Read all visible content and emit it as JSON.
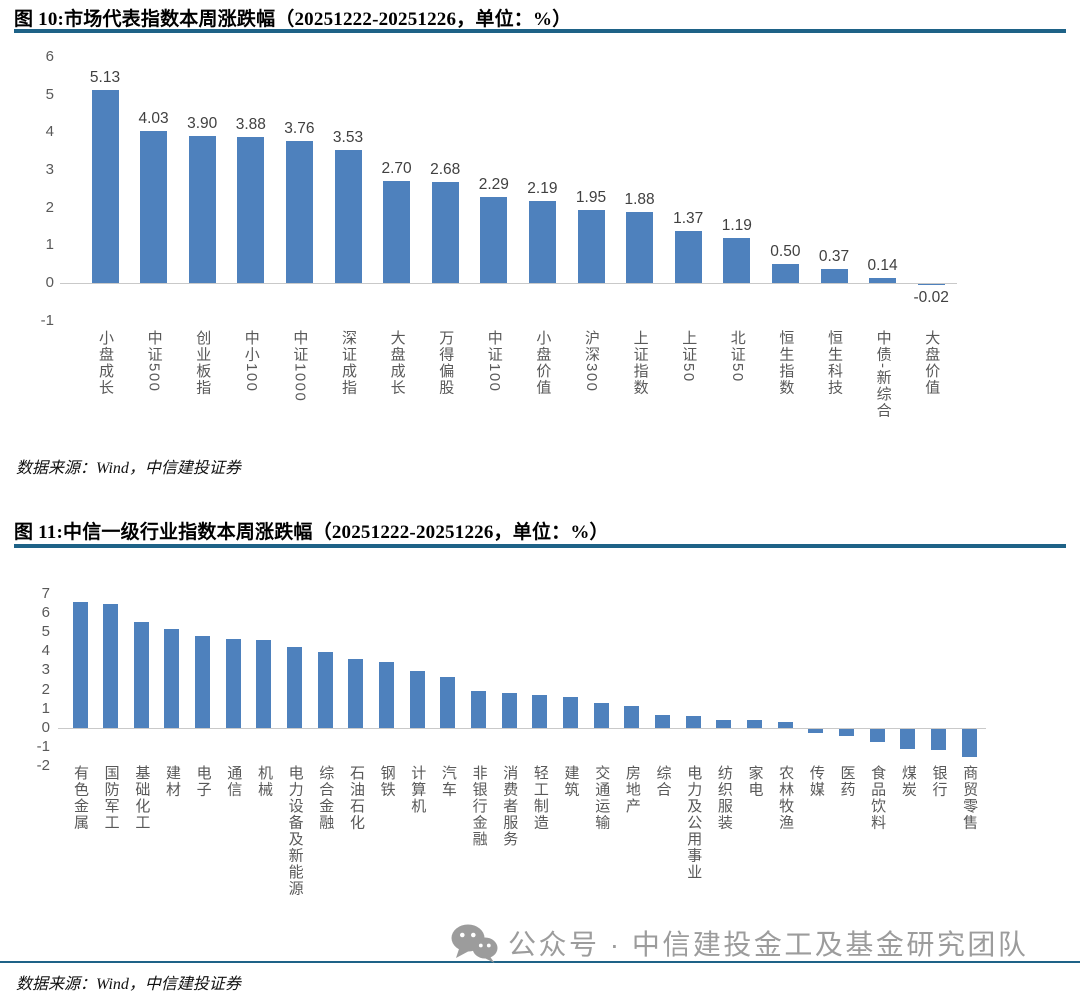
{
  "figure10": {
    "title": "图 10:市场代表指数本周涨跌幅（20251222-20251226，单位：%）",
    "source": "数据来源：Wind，中信建投证券"
  },
  "figure11": {
    "title": "图 11:中信一级行业指数本周涨跌幅（20251222-20251226，单位：%）",
    "source": "数据来源：Wind，中信建投证券"
  },
  "watermark": {
    "icon": "wechat-icon",
    "text": "公众号 · 中信建投金工及基金研究团队"
  },
  "colors": {
    "bar": "#4E81BD",
    "title_rule": "#1E6287",
    "bottom_rule": "#1E6287",
    "axis_line": "#C9C9C9",
    "tick_text": "#595959",
    "value_label": "#404040",
    "watermark": "#9C9C9C"
  },
  "chart_data": [
    {
      "type": "bar",
      "title": "图 10:市场代表指数本周涨跌幅（20251222-20251226，单位：%）",
      "categories": [
        "小盘成长",
        "中证500",
        "创业板指",
        "中小100",
        "中证1000",
        "深证成指",
        "大盘成长",
        "万得偏股",
        "中证100",
        "小盘价值",
        "沪深300",
        "上证指数",
        "上证50",
        "北证50",
        "恒生指数",
        "恒生科技",
        "中债-新综合",
        "大盘价值"
      ],
      "values": [
        5.13,
        4.03,
        3.9,
        3.88,
        3.76,
        3.53,
        2.7,
        2.68,
        2.29,
        2.19,
        1.95,
        1.88,
        1.37,
        1.19,
        0.5,
        0.37,
        0.14,
        -0.02
      ],
      "data_labels": true,
      "label_decimals": 2,
      "xlabel": "",
      "ylabel": "",
      "ylim": [
        -1,
        6
      ],
      "yticks": [
        6,
        5,
        4,
        3,
        2,
        1,
        0,
        -1
      ],
      "grid": false,
      "legend": "none",
      "bar_color": "#4E81BD"
    },
    {
      "type": "bar",
      "title": "图 11:中信一级行业指数本周涨跌幅（20251222-20251226，单位：%）",
      "categories": [
        "有色金属",
        "国防军工",
        "基础化工",
        "建材",
        "电子",
        "通信",
        "机械",
        "电力设备及新能源",
        "综合金融",
        "石油石化",
        "钢铁",
        "计算机",
        "汽车",
        "非银行金融",
        "消费者服务",
        "轻工制造",
        "建筑",
        "交通运输",
        "房地产",
        "综合",
        "电力及公用事业",
        "纺织服装",
        "家电",
        "农林牧渔",
        "传媒",
        "医药",
        "食品饮料",
        "煤炭",
        "银行",
        "商贸零售"
      ],
      "values": [
        6.55,
        6.45,
        5.5,
        5.15,
        4.8,
        4.65,
        4.6,
        4.2,
        3.95,
        3.6,
        3.45,
        2.95,
        2.65,
        1.95,
        1.8,
        1.7,
        1.6,
        1.3,
        1.15,
        0.7,
        0.65,
        0.42,
        0.4,
        0.3,
        -0.2,
        -0.35,
        -0.7,
        -1.05,
        -1.1,
        -1.45
      ],
      "data_labels": false,
      "xlabel": "",
      "ylabel": "",
      "ylim": [
        -2,
        7
      ],
      "yticks": [
        7,
        6,
        5,
        4,
        3,
        2,
        1,
        0,
        -1,
        -2
      ],
      "grid": false,
      "legend": "none",
      "bar_color": "#4E81BD"
    }
  ]
}
